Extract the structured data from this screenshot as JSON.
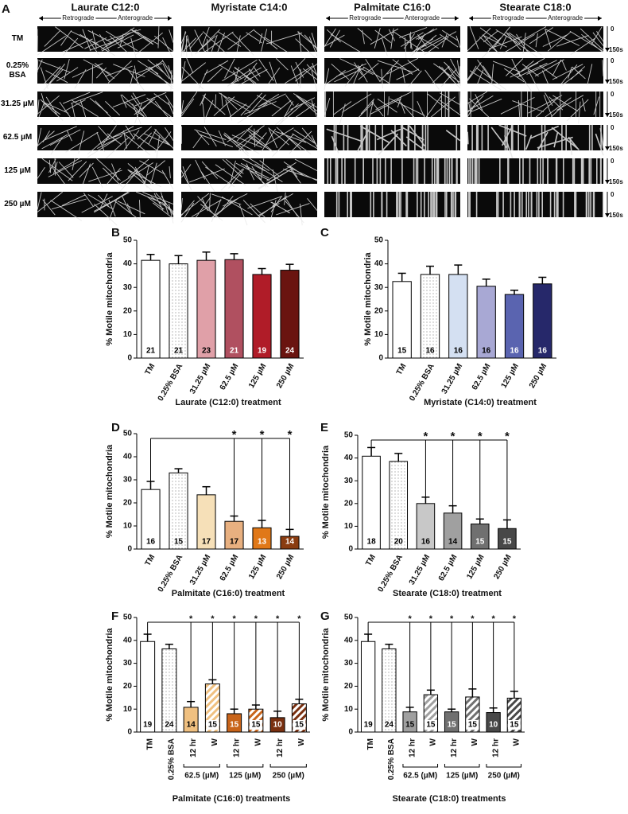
{
  "panel_a": {
    "label": "A",
    "columns": [
      "Laurate C12:0",
      "Myristate C14:0",
      "Palmitate C16:0",
      "Stearate C18:0"
    ],
    "rows": [
      "TM",
      "0.25% BSA",
      "31.25 µM",
      "62.5 µM",
      "125 µM",
      "250 µM"
    ],
    "direction_labels": [
      "Retrograde",
      "Anterograde"
    ],
    "time_labels": [
      "0",
      "150s"
    ]
  },
  "chart_data": [
    {
      "type": "bar",
      "label": "B",
      "x_label": "Laurate (C12:0) treatment",
      "y_label": "% Motile mitochondria",
      "categories": [
        "TM",
        "0.25% BSA",
        "31.25 µM",
        "62.5 µM",
        "125 µM",
        "250 µM"
      ],
      "values": [
        41.5,
        40,
        41.5,
        41.8,
        35.5,
        37.3
      ],
      "errors": [
        2.5,
        3.5,
        3.5,
        2.5,
        2.5,
        2.5
      ],
      "n": [
        21,
        21,
        23,
        21,
        19,
        24
      ],
      "colors": [
        "#ffffff",
        "#ffffff",
        "#e0a0a8",
        "#b05060",
        "#b01c28",
        "#6a1410"
      ],
      "fill_pattern": [
        "none",
        "dots",
        "none",
        "none",
        "none",
        "none"
      ],
      "ylim": [
        0,
        50
      ],
      "yticks": [
        0,
        10,
        20,
        30,
        40,
        50
      ]
    },
    {
      "type": "bar",
      "label": "C",
      "x_label": "Myristate (C14:0) treatment",
      "y_label": "% Motile mitochondria",
      "categories": [
        "TM",
        "0.25% BSA",
        "31.25 µM",
        "62.5 µM",
        "125 µM",
        "250 µM"
      ],
      "values": [
        32.5,
        35.5,
        35.5,
        30.5,
        27,
        31.5
      ],
      "errors": [
        3.5,
        3.5,
        4,
        3,
        1.8,
        2.8
      ],
      "n": [
        15,
        16,
        16,
        16,
        16,
        16
      ],
      "colors": [
        "#ffffff",
        "#ffffff",
        "#d4e0f2",
        "#a8a8d4",
        "#5a64b0",
        "#26286a"
      ],
      "fill_pattern": [
        "none",
        "dots",
        "none",
        "none",
        "none",
        "none"
      ],
      "ylim": [
        0,
        50
      ],
      "yticks": [
        0,
        10,
        20,
        30,
        40,
        50
      ]
    },
    {
      "type": "bar",
      "label": "D",
      "x_label": "Palmitate (C16:0) treatment",
      "y_label": "% Motile mitochondria",
      "categories": [
        "TM",
        "0.25% BSA",
        "31.25 µM",
        "62.5 µM",
        "125 µM",
        "250 µM"
      ],
      "values": [
        25.8,
        33,
        23.5,
        12,
        9.2,
        5.5
      ],
      "errors": [
        3.5,
        1.8,
        3.5,
        2.3,
        3.2,
        3
      ],
      "n": [
        16,
        15,
        17,
        17,
        13,
        14
      ],
      "colors": [
        "#ffffff",
        "#ffffff",
        "#f6e0b8",
        "#e8b080",
        "#e07818",
        "#8a3c10"
      ],
      "fill_pattern": [
        "none",
        "dots",
        "none",
        "none",
        "none",
        "none"
      ],
      "ylim": [
        0,
        50
      ],
      "yticks": [
        0,
        10,
        20,
        30,
        40,
        50
      ],
      "significance": {
        "from": 0,
        "to": [
          3,
          4,
          5
        ],
        "label": "*"
      }
    },
    {
      "type": "bar",
      "label": "E",
      "x_label": "Stearate (C18:0) treatment",
      "y_label": "% Motile mitochondria",
      "categories": [
        "TM",
        "0.25% BSA",
        "31.25 µM",
        "62.5 µM",
        "125 µM",
        "250 µM"
      ],
      "values": [
        40.8,
        38.5,
        20,
        15.8,
        11,
        9
      ],
      "errors": [
        3.8,
        3.5,
        2.8,
        3.2,
        2.2,
        3.8
      ],
      "n": [
        18,
        20,
        16,
        14,
        15,
        15
      ],
      "colors": [
        "#ffffff",
        "#ffffff",
        "#c8c8c8",
        "#a0a0a0",
        "#707070",
        "#484848"
      ],
      "fill_pattern": [
        "none",
        "dots",
        "none",
        "none",
        "none",
        "none"
      ],
      "ylim": [
        0,
        50
      ],
      "yticks": [
        0,
        10,
        20,
        30,
        40,
        50
      ],
      "significance": {
        "from": 0,
        "to": [
          2,
          3,
          4,
          5
        ],
        "label": "*"
      }
    },
    {
      "type": "bar",
      "label": "F",
      "x_label": "Palmitate (C16:0) treatments",
      "y_label": "% Motile mitochondria",
      "categories": [
        "TM",
        "0.25% BSA",
        "12 hr",
        "W",
        "12 hr",
        "W",
        "12 hr",
        "W"
      ],
      "values": [
        39.5,
        36.3,
        10.8,
        21,
        8,
        10,
        6.3,
        12.3
      ],
      "errors": [
        3.2,
        2,
        2.5,
        1.8,
        2,
        1.8,
        2.8,
        2
      ],
      "n": [
        19,
        24,
        14,
        15,
        15,
        15,
        10,
        15
      ],
      "colors": [
        "#ffffff",
        "#ffffff",
        "#f0c080",
        "#f0c080",
        "#c8641a",
        "#c8641a",
        "#7a3010",
        "#7a3010"
      ],
      "fill_pattern": [
        "none",
        "dots",
        "none",
        "hatch",
        "none",
        "hatch",
        "none",
        "hatch"
      ],
      "groups": [
        {
          "label": "62.5 (µM)",
          "categories": [
            2,
            3
          ]
        },
        {
          "label": "125 (µM)",
          "categories": [
            4,
            5
          ]
        },
        {
          "label": "250 (µM)",
          "categories": [
            6,
            7
          ]
        }
      ],
      "ylim": [
        0,
        50
      ],
      "yticks": [
        0,
        10,
        20,
        30,
        40,
        50
      ],
      "significance": {
        "from": 0,
        "to": [
          2,
          3,
          4,
          5,
          6,
          7
        ],
        "label": "*"
      }
    },
    {
      "type": "bar",
      "label": "G",
      "x_label": "Stearate (C18:0) treatments",
      "y_label": "% Motile mitochondria",
      "categories": [
        "TM",
        "0.25% BSA",
        "12 hr",
        "W",
        "12 hr",
        "W",
        "12 hr",
        "W"
      ],
      "values": [
        39.5,
        36.3,
        8.8,
        16.3,
        8.8,
        15.3,
        8.5,
        14.8
      ],
      "errors": [
        3.2,
        2,
        2,
        2,
        1.2,
        3.5,
        2,
        3
      ],
      "n": [
        19,
        24,
        15,
        15,
        15,
        15,
        10,
        15
      ],
      "colors": [
        "#ffffff",
        "#ffffff",
        "#a0a0a0",
        "#a0a0a0",
        "#707070",
        "#707070",
        "#484848",
        "#484848"
      ],
      "fill_pattern": [
        "none",
        "dots",
        "none",
        "hatch",
        "none",
        "hatch",
        "none",
        "hatch"
      ],
      "groups": [
        {
          "label": "62.5 (µM)",
          "categories": [
            2,
            3
          ]
        },
        {
          "label": "125 (µM)",
          "categories": [
            4,
            5
          ]
        },
        {
          "label": "250 (µM)",
          "categories": [
            6,
            7
          ]
        }
      ],
      "ylim": [
        0,
        50
      ],
      "yticks": [
        0,
        10,
        20,
        30,
        40,
        50
      ],
      "significance": {
        "from": 0,
        "to": [
          2,
          3,
          4,
          5,
          6,
          7
        ],
        "label": "*"
      }
    }
  ]
}
